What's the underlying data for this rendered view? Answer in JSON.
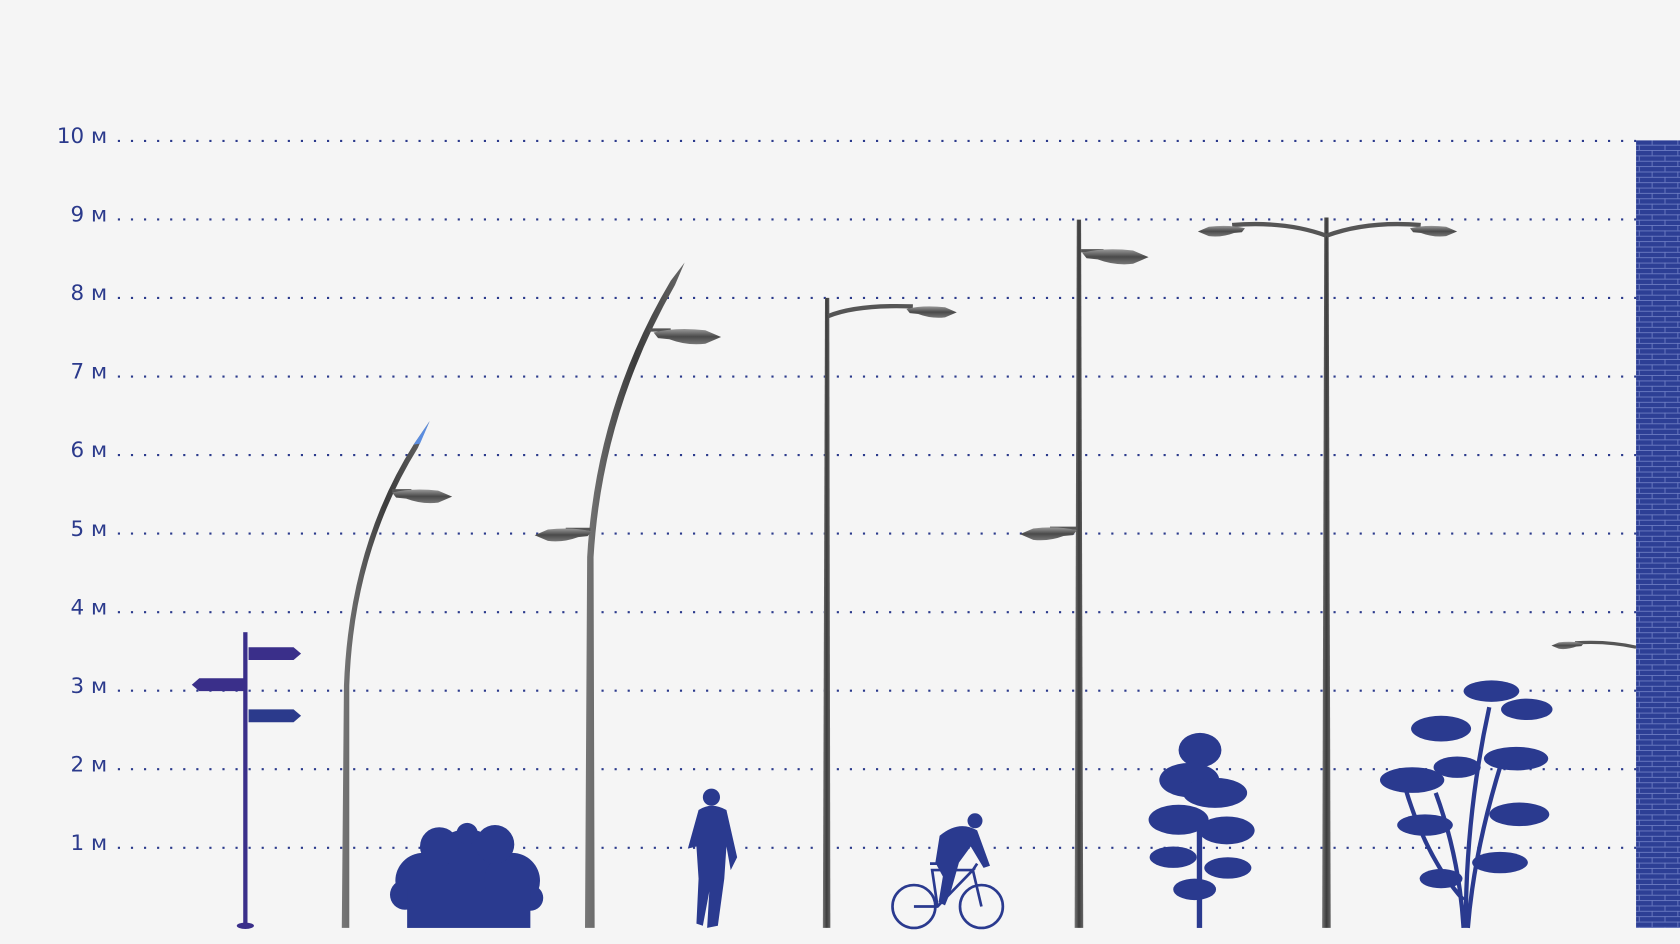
{
  "axis": {
    "ticks": [
      {
        "value": 10,
        "label": "10 м"
      },
      {
        "value": 9,
        "label": "9 м"
      },
      {
        "value": 8,
        "label": "8 м"
      },
      {
        "value": 7,
        "label": "7 м"
      },
      {
        "value": 6,
        "label": "6 м"
      },
      {
        "value": 5,
        "label": "5 м"
      },
      {
        "value": 4,
        "label": "4 м"
      },
      {
        "value": 3,
        "label": "3 м"
      },
      {
        "value": 2,
        "label": "2 м"
      },
      {
        "value": 1,
        "label": "1 м"
      }
    ]
  },
  "colors": {
    "background": "#f5f5f5",
    "text": "#2b3a8c",
    "silhouette": "#2a3a8f",
    "signpost": "#3a2f8a",
    "pole": "#5a5a5a",
    "wall": "#2d3f95"
  }
}
